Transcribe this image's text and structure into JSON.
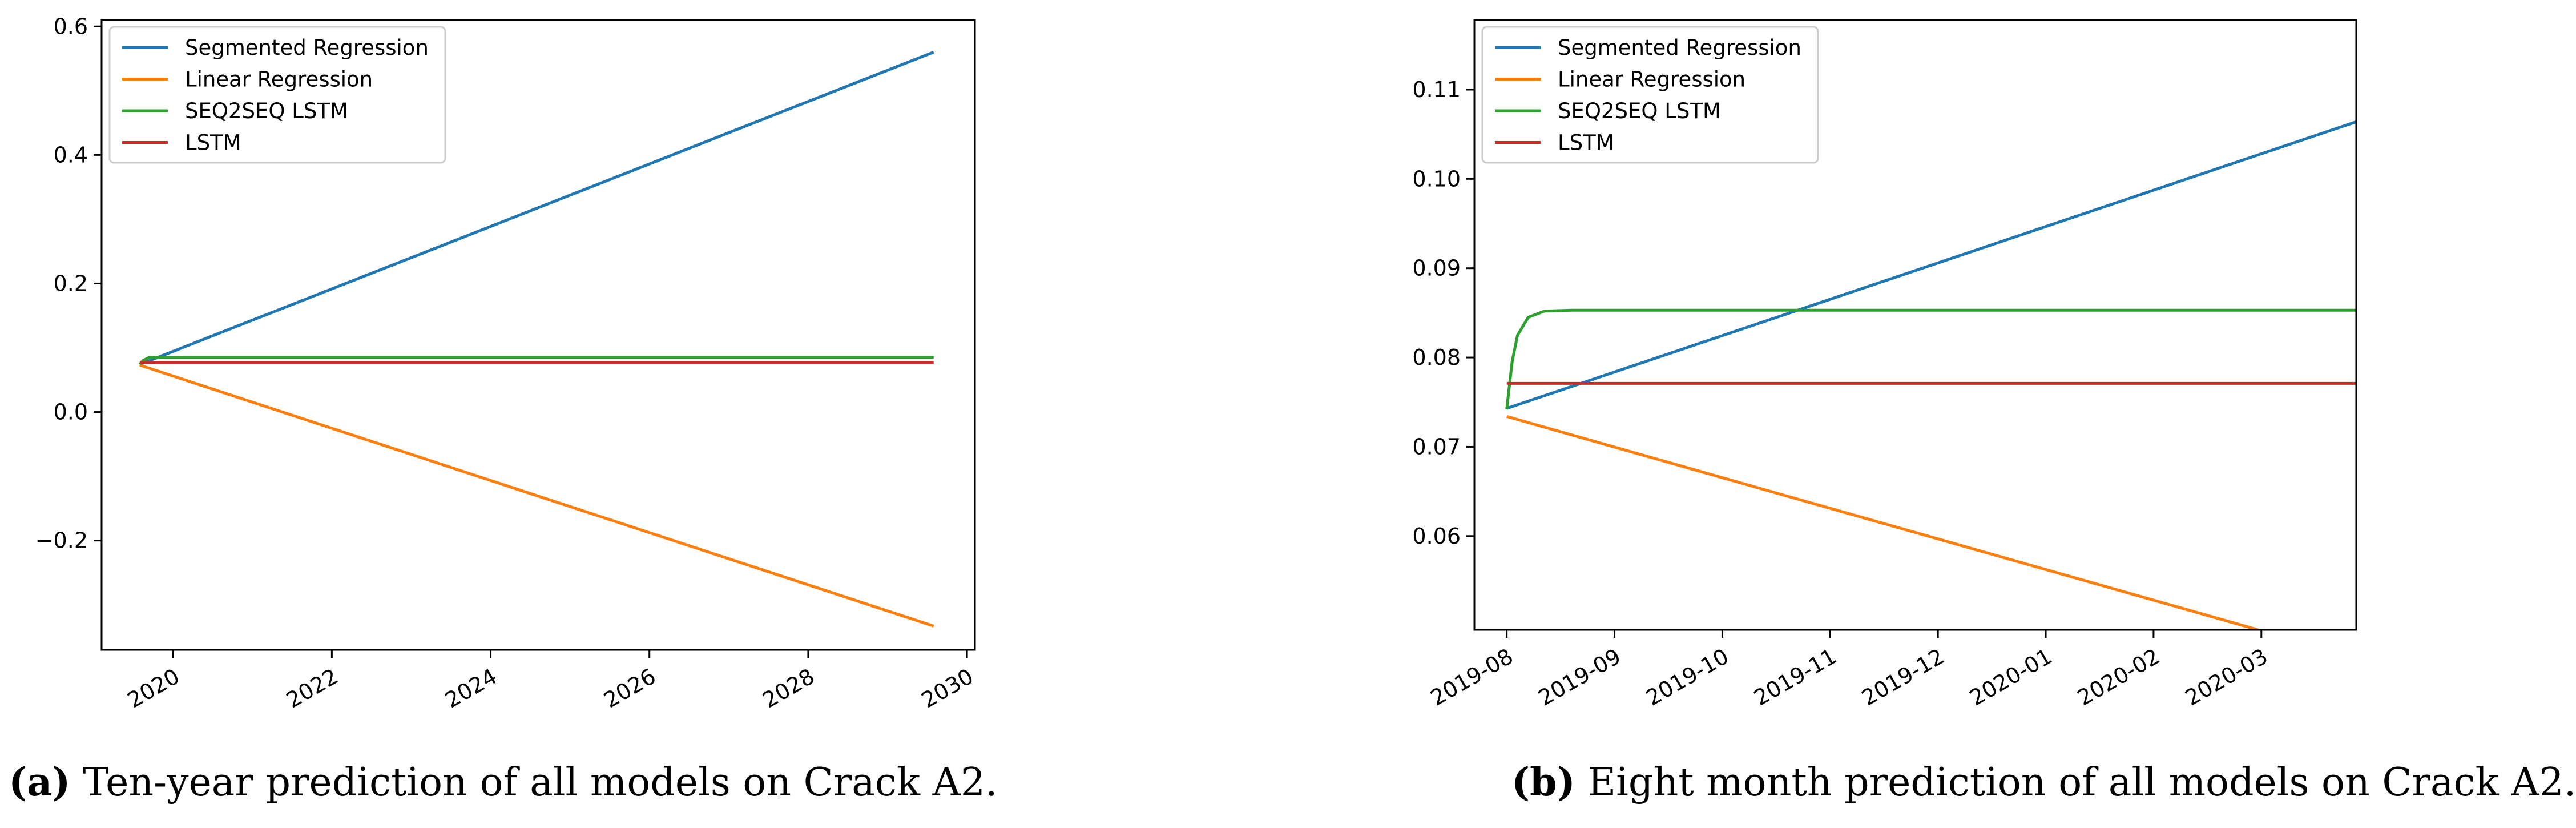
{
  "chart_data": [
    {
      "type": "line",
      "title": "",
      "xlabel": "",
      "ylabel": "",
      "x_unit": "year",
      "xlim": [
        2019.1,
        2030.1
      ],
      "ylim": [
        -0.37,
        0.61
      ],
      "xticks": [
        2020,
        2022,
        2024,
        2026,
        2028,
        2030
      ],
      "xtick_labels": [
        "2020",
        "2022",
        "2024",
        "2026",
        "2028",
        "2030"
      ],
      "yticks": [
        -0.2,
        0.0,
        0.2,
        0.4,
        0.6
      ],
      "ytick_labels": [
        "−0.2",
        "0.0",
        "0.2",
        "0.4",
        "0.6"
      ],
      "legend": "top-left",
      "series": [
        {
          "name": "Segmented Regression",
          "color": "#1f77b4",
          "points": [
            [
              2019.58,
              0.074
            ],
            [
              2029.58,
              0.56
            ]
          ]
        },
        {
          "name": "Linear Regression",
          "color": "#ff7f0e",
          "points": [
            [
              2019.58,
              0.073
            ],
            [
              2029.58,
              -0.333
            ]
          ]
        },
        {
          "name": "SEQ2SEQ LSTM",
          "color": "#2ca02c",
          "points": [
            [
              2019.58,
              0.074
            ],
            [
              2019.62,
              0.08
            ],
            [
              2019.7,
              0.085
            ],
            [
              2029.58,
              0.085
            ]
          ]
        },
        {
          "name": "LSTM",
          "color": "#d62728",
          "points": [
            [
              2019.58,
              0.077
            ],
            [
              2029.58,
              0.077
            ]
          ]
        }
      ],
      "caption_label": "(a)",
      "caption_text": " Ten-year prediction of all models on Crack A2."
    },
    {
      "type": "line",
      "title": "",
      "xlabel": "",
      "ylabel": "",
      "x_unit": "month index (0 = 2019-08)",
      "xlim": [
        -0.3,
        7.88
      ],
      "ylim": [
        0.0495,
        0.1178
      ],
      "xticks": [
        0,
        1,
        2,
        3,
        4,
        5,
        6,
        7
      ],
      "xtick_labels": [
        "2019-08",
        "2019-09",
        "2019-10",
        "2019-11",
        "2019-12",
        "2020-01",
        "2020-02",
        "2020-03"
      ],
      "yticks": [
        0.06,
        0.07,
        0.08,
        0.09,
        0.1,
        0.11
      ],
      "ytick_labels": [
        "0.06",
        "0.07",
        "0.08",
        "0.09",
        "0.10",
        "0.11"
      ],
      "legend": "top-left",
      "series": [
        {
          "name": "Segmented Regression",
          "color": "#1f77b4",
          "points": [
            [
              0,
              0.0743
            ],
            [
              7.88,
              0.1064
            ]
          ]
        },
        {
          "name": "Linear Regression",
          "color": "#ff7f0e",
          "points": [
            [
              0,
              0.0734
            ],
            [
              6.97,
              0.0495
            ]
          ]
        },
        {
          "name": "SEQ2SEQ LSTM",
          "color": "#2ca02c",
          "points": [
            [
              0,
              0.0742
            ],
            [
              0.05,
              0.0795
            ],
            [
              0.1,
              0.0825
            ],
            [
              0.2,
              0.0845
            ],
            [
              0.35,
              0.0852
            ],
            [
              0.6,
              0.0853
            ],
            [
              7.88,
              0.0853
            ]
          ]
        },
        {
          "name": "LSTM",
          "color": "#d62728",
          "points": [
            [
              0,
              0.0771
            ],
            [
              7.88,
              0.0771
            ]
          ]
        }
      ],
      "caption_label": "(b)",
      "caption_text": " Eight month prediction of all models on Crack A2."
    }
  ]
}
